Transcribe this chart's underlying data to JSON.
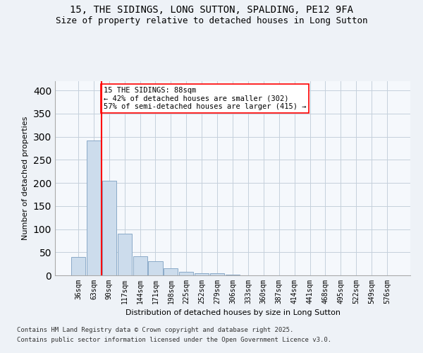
{
  "title1": "15, THE SIDINGS, LONG SUTTON, SPALDING, PE12 9FA",
  "title2": "Size of property relative to detached houses in Long Sutton",
  "xlabel": "Distribution of detached houses by size in Long Sutton",
  "ylabel": "Number of detached properties",
  "categories": [
    "36sqm",
    "63sqm",
    "90sqm",
    "117sqm",
    "144sqm",
    "171sqm",
    "198sqm",
    "225sqm",
    "252sqm",
    "279sqm",
    "306sqm",
    "333sqm",
    "360sqm",
    "387sqm",
    "414sqm",
    "441sqm",
    "468sqm",
    "495sqm",
    "522sqm",
    "549sqm",
    "576sqm"
  ],
  "values": [
    40,
    292,
    205,
    90,
    42,
    30,
    15,
    8,
    5,
    4,
    2,
    0,
    0,
    0,
    0,
    0,
    0,
    0,
    0,
    0,
    0
  ],
  "bar_color": "#ccdcec",
  "bar_edge_color": "#8aaac8",
  "redline_index": 1.5,
  "annotation_title": "15 THE SIDINGS: 88sqm",
  "annotation_line1": "← 42% of detached houses are smaller (302)",
  "annotation_line2": "57% of semi-detached houses are larger (415) →",
  "footnote1": "Contains HM Land Registry data © Crown copyright and database right 2025.",
  "footnote2": "Contains public sector information licensed under the Open Government Licence v3.0.",
  "bg_color": "#eef2f7",
  "plot_bg_color": "#f5f8fc",
  "grid_color": "#c5d0dc",
  "ylim": [
    0,
    420
  ],
  "title_fontsize": 10,
  "subtitle_fontsize": 9,
  "axis_label_fontsize": 8,
  "tick_fontsize": 7,
  "annotation_fontsize": 7.5,
  "footnote_fontsize": 6.5
}
